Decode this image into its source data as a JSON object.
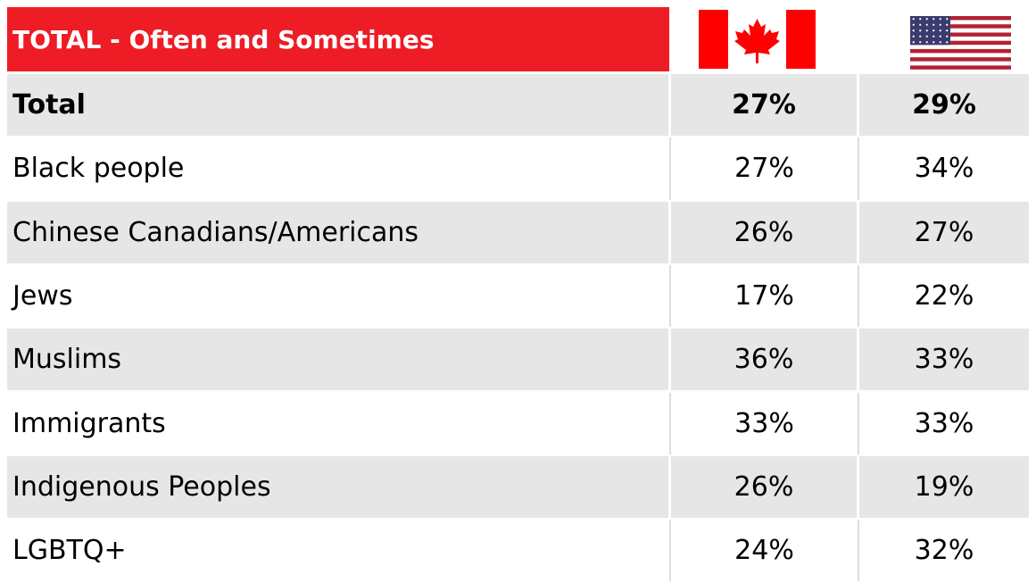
{
  "table": {
    "header": {
      "title": "TOTAL - Often and Sometimes"
    },
    "rows": [
      {
        "label": "Total",
        "values": [
          "27%",
          "29%"
        ],
        "bold": true
      },
      {
        "label": "Black people",
        "values": [
          "27%",
          "34%"
        ]
      },
      {
        "label": "Chinese Canadians/Americans",
        "values": [
          "26%",
          "27%"
        ]
      },
      {
        "label": "Jews",
        "values": [
          "17%",
          "22%"
        ]
      },
      {
        "label": "Muslims",
        "values": [
          "36%",
          "33%"
        ]
      },
      {
        "label": "Immigrants",
        "values": [
          "33%",
          "33%"
        ]
      },
      {
        "label": "Indigenous Peoples",
        "values": [
          "26%",
          "19%"
        ]
      },
      {
        "label": "LGBTQ+",
        "values": [
          "24%",
          "32%"
        ]
      }
    ]
  }
}
